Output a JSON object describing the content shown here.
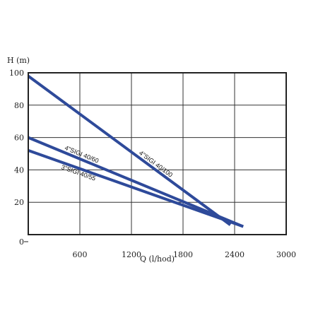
{
  "chart_data": {
    "type": "line",
    "title": "",
    "xlabel": "Q  (l/hod)",
    "ylabel": "H (m)",
    "xlim": [
      0,
      3000
    ],
    "ylim": [
      0,
      100
    ],
    "x_ticks": [
      "0",
      "600",
      "1200",
      "1800",
      "2400",
      "3000"
    ],
    "y_ticks": [
      "0",
      "20",
      "40",
      "60",
      "80",
      "100"
    ],
    "grid": true,
    "legend": "none",
    "series_color": "#2e4a9a",
    "series": [
      {
        "name": "4\"SIGI 40/100",
        "x": [
          0,
          2350
        ],
        "y": [
          98,
          6
        ]
      },
      {
        "name": "4\"SIGI 40/60",
        "x": [
          0,
          2500
        ],
        "y": [
          60,
          5
        ]
      },
      {
        "name": "3\"SIGI 40/55",
        "x": [
          0,
          2500
        ],
        "y": [
          52,
          5
        ]
      }
    ]
  }
}
